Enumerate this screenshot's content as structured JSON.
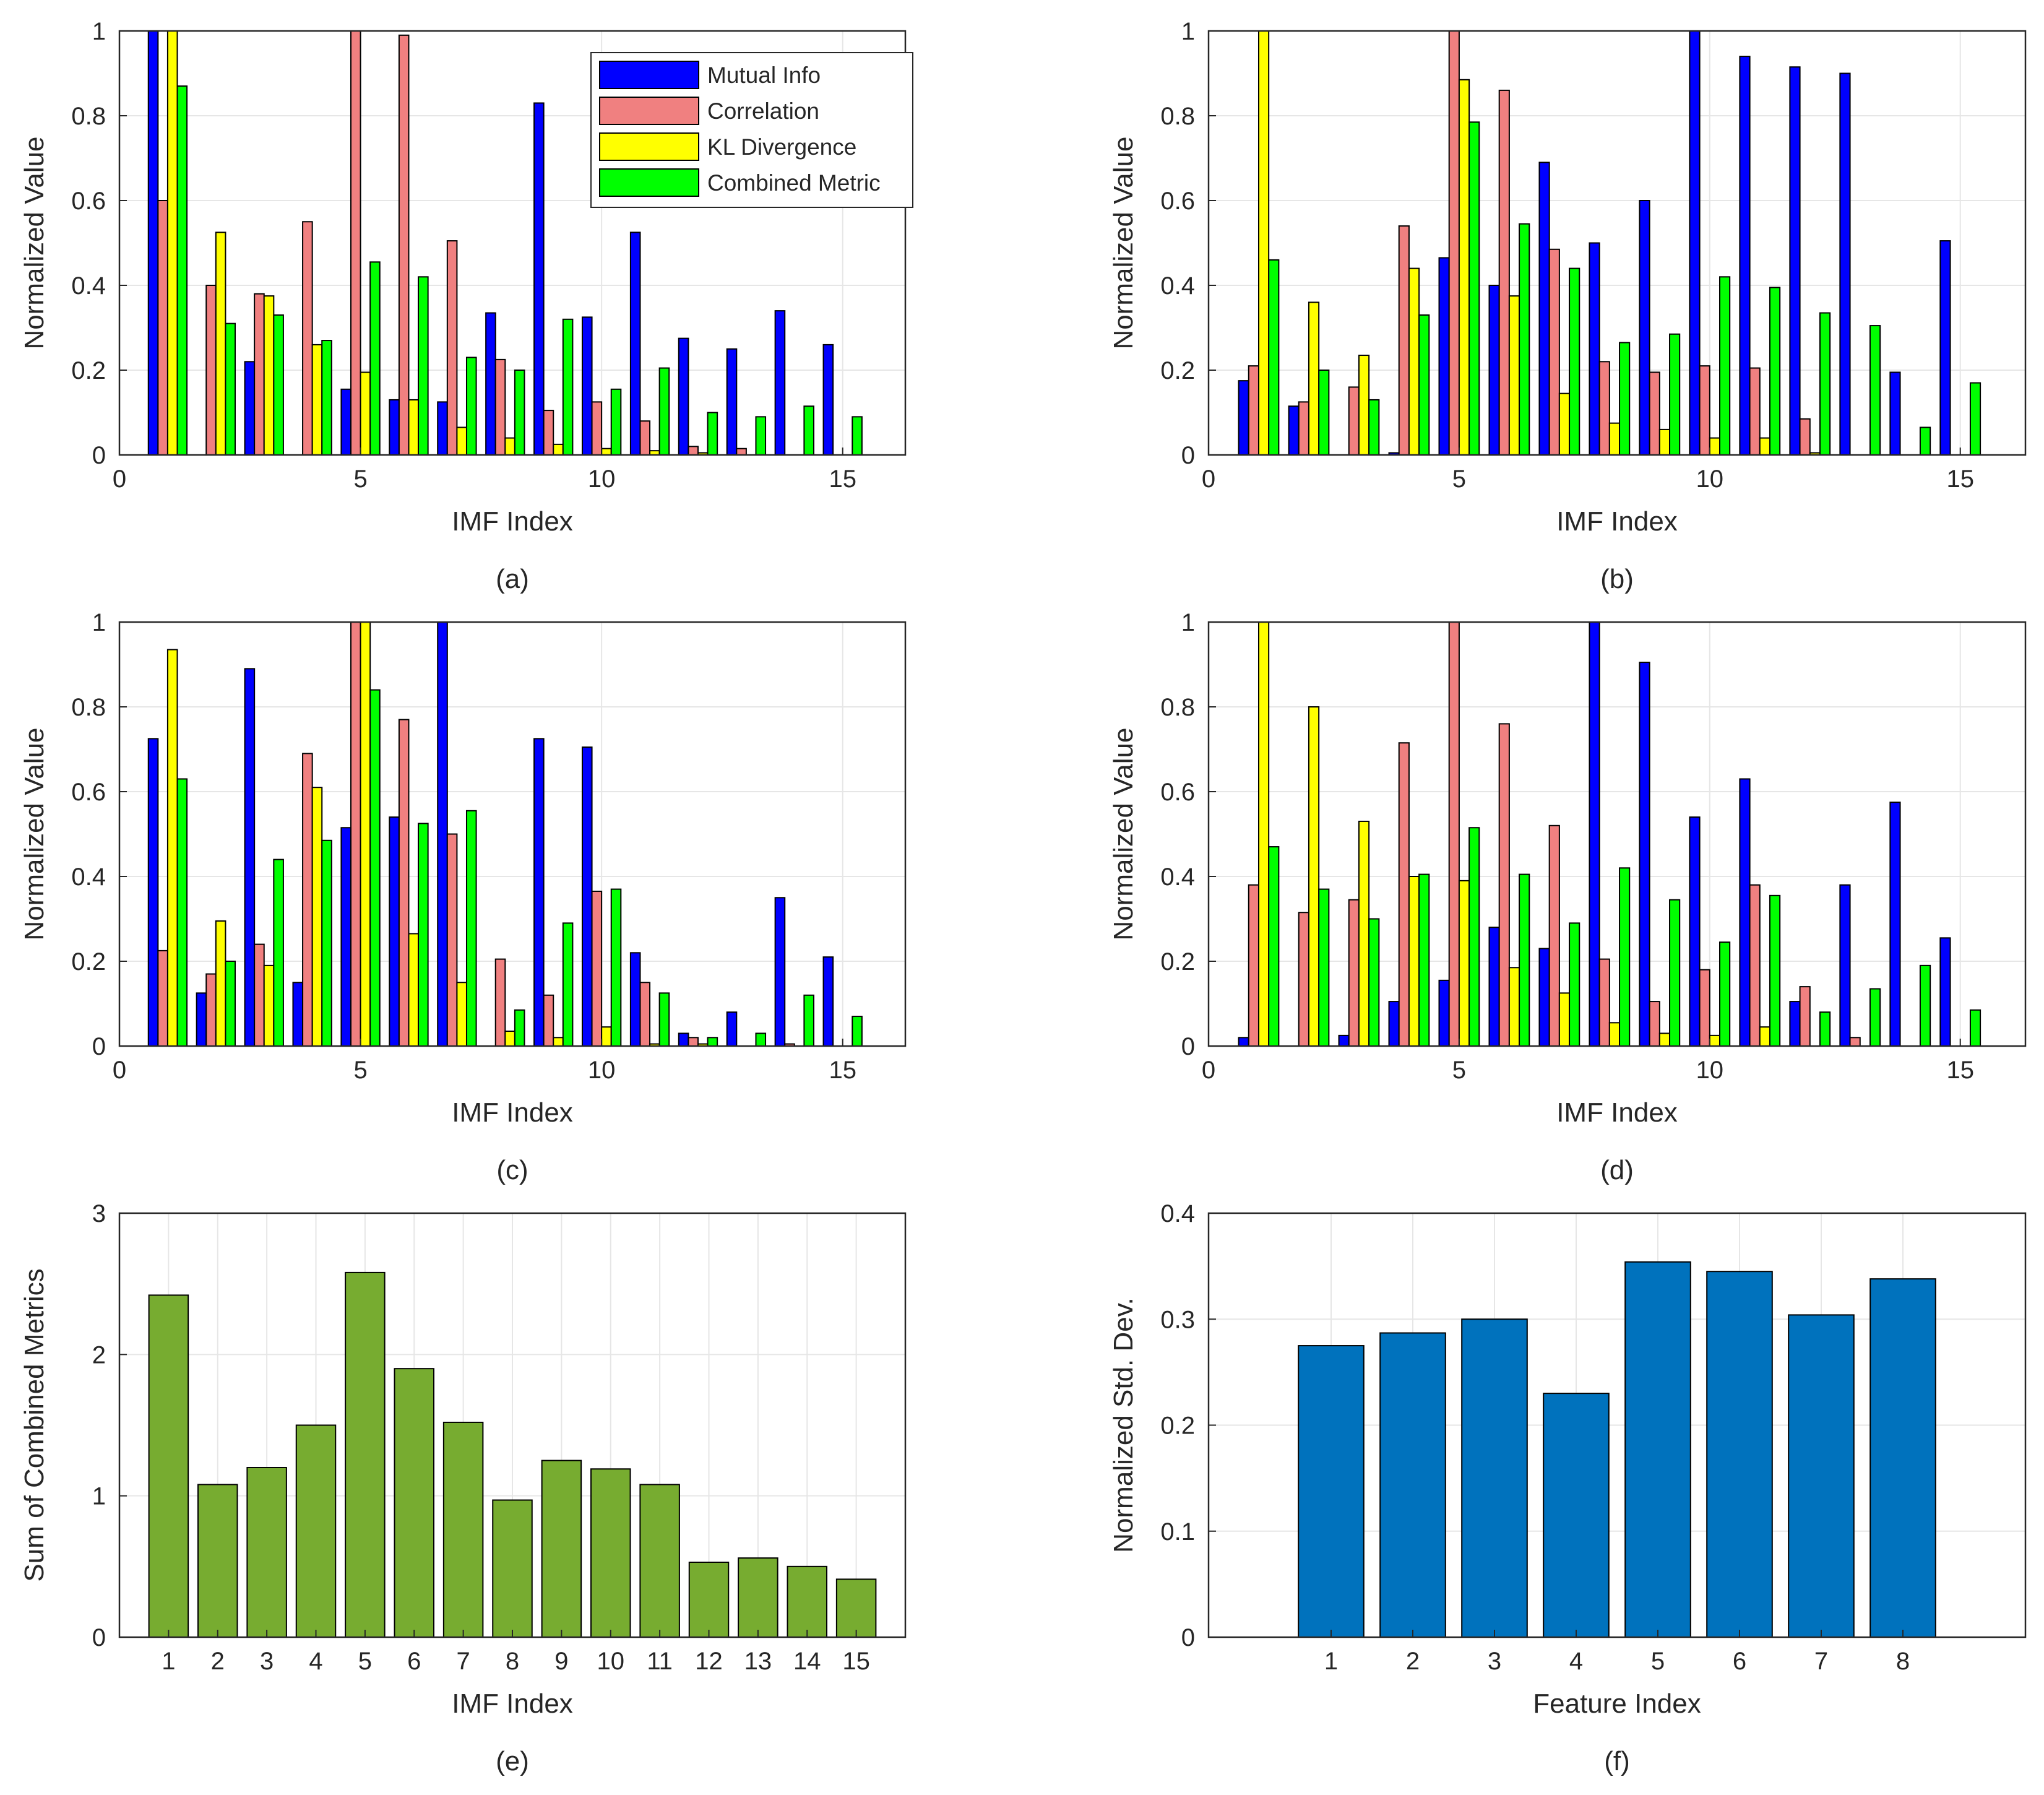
{
  "colors": {
    "mutual": "#0000ff",
    "correlation": "#f08080",
    "kl": "#ffff00",
    "combined": "#00ff00",
    "sum_bar": "#77ac30",
    "std_bar": "#0072bd",
    "grid": "#e6e6e6",
    "axis": "#262626"
  },
  "chart_data": [
    {
      "id": "a",
      "caption": "(a)",
      "type": "bar",
      "xlabel": "IMF Index",
      "ylabel": "Normalized Value",
      "xlim": [
        0,
        16.3
      ],
      "ylim": [
        0,
        1
      ],
      "xticks": [
        0,
        5,
        10,
        15
      ],
      "yticks": [
        0,
        0.2,
        0.4,
        0.6,
        0.8,
        1
      ],
      "ytick_labels": [
        "0",
        "0.2",
        "0.4",
        "0.6",
        "0.8",
        "1"
      ],
      "legend_position": "top-right",
      "categories": [
        1,
        2,
        3,
        4,
        5,
        6,
        7,
        8,
        9,
        10,
        11,
        12,
        13,
        14,
        15
      ],
      "series": [
        {
          "name": "Mutual Info",
          "color_key": "mutual",
          "values": [
            1.0,
            0.0,
            0.22,
            0.0,
            0.155,
            0.13,
            0.125,
            0.335,
            0.83,
            0.325,
            0.525,
            0.275,
            0.25,
            0.34,
            0.26
          ]
        },
        {
          "name": "Correlation",
          "color_key": "correlation",
          "values": [
            0.6,
            0.4,
            0.38,
            0.55,
            1.0,
            0.99,
            0.505,
            0.225,
            0.105,
            0.125,
            0.08,
            0.02,
            0.015,
            0.0,
            0.0
          ]
        },
        {
          "name": "KL Divergence",
          "color_key": "kl",
          "values": [
            1.0,
            0.525,
            0.375,
            0.26,
            0.195,
            0.13,
            0.065,
            0.04,
            0.025,
            0.015,
            0.01,
            0.005,
            0.0,
            0.0,
            0.0
          ]
        },
        {
          "name": "Combined Metric",
          "color_key": "combined",
          "values": [
            0.87,
            0.31,
            0.33,
            0.27,
            0.455,
            0.42,
            0.23,
            0.2,
            0.32,
            0.155,
            0.205,
            0.1,
            0.09,
            0.115,
            0.09
          ]
        }
      ]
    },
    {
      "id": "b",
      "caption": "(b)",
      "type": "bar",
      "xlabel": "IMF Index",
      "ylabel": "Normalized Value",
      "xlim": [
        0,
        16.3
      ],
      "ylim": [
        0,
        1
      ],
      "xticks": [
        0,
        5,
        10,
        15
      ],
      "yticks": [
        0,
        0.2,
        0.4,
        0.6,
        0.8,
        1
      ],
      "ytick_labels": [
        "0",
        "0.2",
        "0.4",
        "0.6",
        "0.8",
        "1"
      ],
      "categories": [
        1,
        2,
        3,
        4,
        5,
        6,
        7,
        8,
        9,
        10,
        11,
        12,
        13,
        14,
        15
      ],
      "series": [
        {
          "name": "Mutual Info",
          "color_key": "mutual",
          "values": [
            0.175,
            0.115,
            0.0,
            0.005,
            0.465,
            0.4,
            0.69,
            0.5,
            0.6,
            1.0,
            0.94,
            0.915,
            0.9,
            0.195,
            0.505
          ]
        },
        {
          "name": "Correlation",
          "color_key": "correlation",
          "values": [
            0.21,
            0.125,
            0.16,
            0.54,
            1.0,
            0.86,
            0.485,
            0.22,
            0.195,
            0.21,
            0.205,
            0.085,
            0.0,
            0.0,
            0.0
          ]
        },
        {
          "name": "KL Divergence",
          "color_key": "kl",
          "values": [
            1.0,
            0.36,
            0.235,
            0.44,
            0.885,
            0.375,
            0.145,
            0.075,
            0.06,
            0.04,
            0.04,
            0.005,
            0.0,
            0.0,
            0.0
          ]
        },
        {
          "name": "Combined Metric",
          "color_key": "combined",
          "values": [
            0.46,
            0.2,
            0.13,
            0.33,
            0.785,
            0.545,
            0.44,
            0.265,
            0.285,
            0.42,
            0.395,
            0.335,
            0.305,
            0.065,
            0.17
          ]
        }
      ]
    },
    {
      "id": "c",
      "caption": "(c)",
      "type": "bar",
      "xlabel": "IMF Index",
      "ylabel": "Normalized Value",
      "xlim": [
        0,
        16.3
      ],
      "ylim": [
        0,
        1
      ],
      "xticks": [
        0,
        5,
        10,
        15
      ],
      "yticks": [
        0,
        0.2,
        0.4,
        0.6,
        0.8,
        1
      ],
      "ytick_labels": [
        "0",
        "0.2",
        "0.4",
        "0.6",
        "0.8",
        "1"
      ],
      "categories": [
        1,
        2,
        3,
        4,
        5,
        6,
        7,
        8,
        9,
        10,
        11,
        12,
        13,
        14,
        15
      ],
      "series": [
        {
          "name": "Mutual Info",
          "color_key": "mutual",
          "values": [
            0.725,
            0.125,
            0.89,
            0.15,
            0.515,
            0.54,
            1.0,
            0.0,
            0.725,
            0.705,
            0.22,
            0.03,
            0.08,
            0.35,
            0.21
          ]
        },
        {
          "name": "Correlation",
          "color_key": "correlation",
          "values": [
            0.225,
            0.17,
            0.24,
            0.69,
            1.0,
            0.77,
            0.5,
            0.205,
            0.12,
            0.365,
            0.15,
            0.02,
            0.0,
            0.005,
            0.0
          ]
        },
        {
          "name": "KL Divergence",
          "color_key": "kl",
          "values": [
            0.935,
            0.295,
            0.19,
            0.61,
            1.0,
            0.265,
            0.15,
            0.035,
            0.02,
            0.045,
            0.005,
            0.005,
            0.0,
            0.0,
            0.0
          ]
        },
        {
          "name": "Combined Metric",
          "color_key": "combined",
          "values": [
            0.63,
            0.2,
            0.44,
            0.485,
            0.84,
            0.525,
            0.555,
            0.085,
            0.29,
            0.37,
            0.125,
            0.02,
            0.03,
            0.12,
            0.07
          ]
        }
      ]
    },
    {
      "id": "d",
      "caption": "(d)",
      "type": "bar",
      "xlabel": "IMF Index",
      "ylabel": "Normalized Value",
      "xlim": [
        0,
        16.3
      ],
      "ylim": [
        0,
        1
      ],
      "xticks": [
        0,
        5,
        10,
        15
      ],
      "yticks": [
        0,
        0.2,
        0.4,
        0.6,
        0.8,
        1
      ],
      "ytick_labels": [
        "0",
        "0.2",
        "0.4",
        "0.6",
        "0.8",
        "1"
      ],
      "categories": [
        1,
        2,
        3,
        4,
        5,
        6,
        7,
        8,
        9,
        10,
        11,
        12,
        13,
        14,
        15
      ],
      "series": [
        {
          "name": "Mutual Info",
          "color_key": "mutual",
          "values": [
            0.02,
            0.0,
            0.025,
            0.105,
            0.155,
            0.28,
            0.23,
            1.0,
            0.905,
            0.54,
            0.63,
            0.105,
            0.38,
            0.575,
            0.255
          ]
        },
        {
          "name": "Correlation",
          "color_key": "correlation",
          "values": [
            0.38,
            0.315,
            0.345,
            0.715,
            1.0,
            0.76,
            0.52,
            0.205,
            0.105,
            0.18,
            0.38,
            0.14,
            0.02,
            0.0,
            0.0
          ]
        },
        {
          "name": "KL Divergence",
          "color_key": "kl",
          "values": [
            1.0,
            0.8,
            0.53,
            0.4,
            0.39,
            0.185,
            0.125,
            0.055,
            0.03,
            0.025,
            0.045,
            0.0,
            0.0,
            0.0,
            0.0
          ]
        },
        {
          "name": "Combined Metric",
          "color_key": "combined",
          "values": [
            0.47,
            0.37,
            0.3,
            0.405,
            0.515,
            0.405,
            0.29,
            0.42,
            0.345,
            0.245,
            0.355,
            0.08,
            0.135,
            0.19,
            0.085
          ]
        }
      ]
    },
    {
      "id": "e",
      "caption": "(e)",
      "type": "bar",
      "xlabel": "IMF Index",
      "ylabel": "Sum of Combined Metrics",
      "xlim": [
        0,
        16
      ],
      "ylim": [
        0,
        3
      ],
      "xticks": [
        1,
        2,
        3,
        4,
        5,
        6,
        7,
        8,
        9,
        10,
        11,
        12,
        13,
        14,
        15
      ],
      "yticks": [
        0,
        1,
        2,
        3
      ],
      "ytick_labels": [
        "0",
        "1",
        "2",
        "3"
      ],
      "categories": [
        1,
        2,
        3,
        4,
        5,
        6,
        7,
        8,
        9,
        10,
        11,
        12,
        13,
        14,
        15
      ],
      "series": [
        {
          "name": "Sum of Combined Metrics",
          "color_key": "sum_bar",
          "values": [
            2.42,
            1.08,
            1.2,
            1.5,
            2.58,
            1.9,
            1.52,
            0.97,
            1.25,
            1.19,
            1.08,
            0.53,
            0.56,
            0.5,
            0.41
          ]
        }
      ]
    },
    {
      "id": "f",
      "caption": "(f)",
      "type": "bar",
      "xlabel": "Feature Index",
      "ylabel": "Normalized Std. Dev.",
      "xlim": [
        -0.5,
        9.5
      ],
      "ylim": [
        0,
        0.4
      ],
      "xticks": [
        1,
        2,
        3,
        4,
        5,
        6,
        7,
        8
      ],
      "yticks": [
        0,
        0.1,
        0.2,
        0.3,
        0.4
      ],
      "ytick_labels": [
        "0",
        "0.1",
        "0.2",
        "0.3",
        "0.4"
      ],
      "categories": [
        1,
        2,
        3,
        4,
        5,
        6,
        7,
        8
      ],
      "series": [
        {
          "name": "Normalized Std. Dev.",
          "color_key": "std_bar",
          "values": [
            0.275,
            0.287,
            0.3,
            0.23,
            0.354,
            0.345,
            0.304,
            0.338
          ]
        }
      ]
    }
  ]
}
